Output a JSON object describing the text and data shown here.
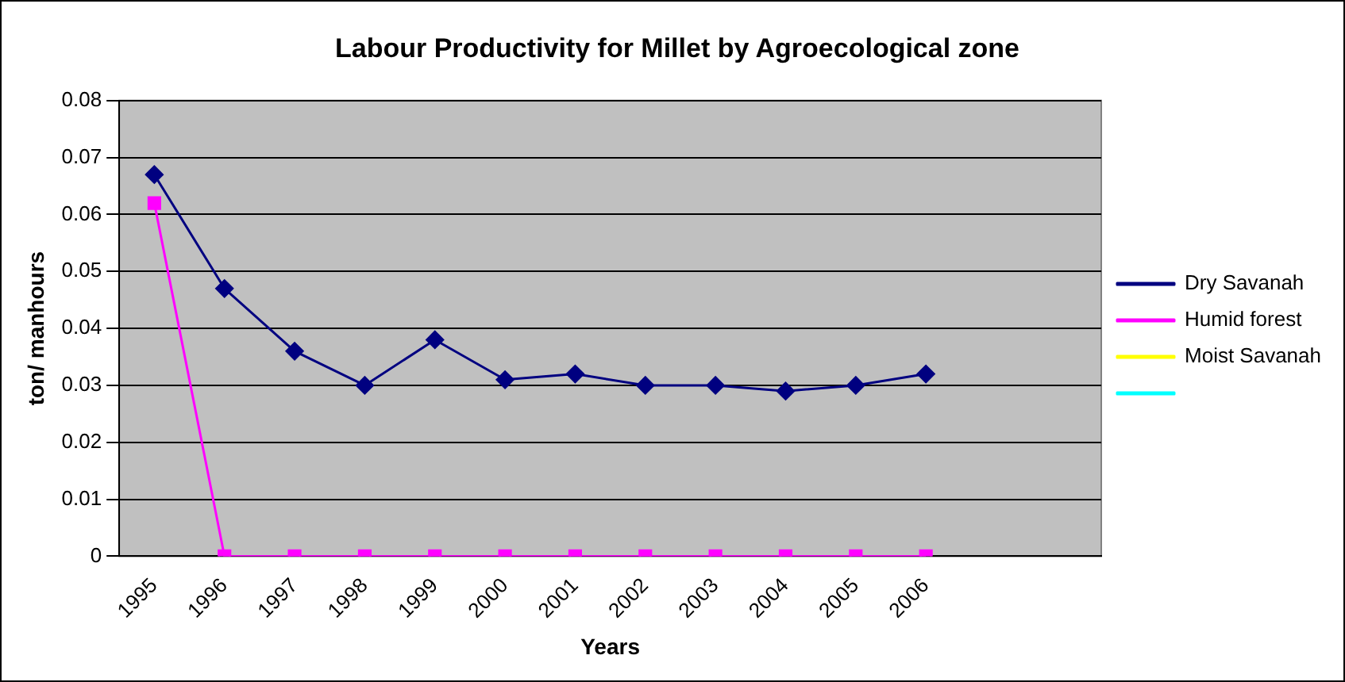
{
  "chart_data": {
    "type": "line",
    "title": "Labour Productivity for Millet by Agroecological zone",
    "xlabel": "Years",
    "ylabel": "ton/ manhours",
    "categories": [
      "1995",
      "1996",
      "1997",
      "1998",
      "1999",
      "2000",
      "2001",
      "2002",
      "2003",
      "2004",
      "2005",
      "2006",
      null,
      null
    ],
    "series": [
      {
        "name": "Dry Savanah",
        "color": "#000080",
        "marker": "diamond",
        "values": [
          0.067,
          0.047,
          0.036,
          0.03,
          0.038,
          0.031,
          0.032,
          0.03,
          0.03,
          0.029,
          0.03,
          0.032,
          null,
          null
        ]
      },
      {
        "name": "Humid forest",
        "color": "#ff00ff",
        "marker": "square",
        "values": [
          0.062,
          0,
          0,
          0,
          0,
          0,
          0,
          0,
          0,
          0,
          0,
          0,
          null,
          null
        ]
      },
      {
        "name": "Moist Savanah",
        "color": "#ffff00",
        "marker": "triangle",
        "values": [
          null,
          null,
          null,
          null,
          null,
          null,
          null,
          null,
          null,
          null,
          null,
          null,
          null,
          null
        ]
      },
      {
        "color": "#00ffff",
        "marker": "cross",
        "values": [
          null,
          null,
          null,
          null,
          null,
          null,
          null,
          null,
          null,
          null,
          null,
          null,
          null,
          null
        ]
      }
    ],
    "ylim": [
      0,
      0.08
    ],
    "yticks": [
      0,
      0.01,
      0.02,
      0.03,
      0.04,
      0.05,
      0.06,
      0.07,
      0.08
    ],
    "grid": "y",
    "legend": "right",
    "line_style": "solid"
  }
}
